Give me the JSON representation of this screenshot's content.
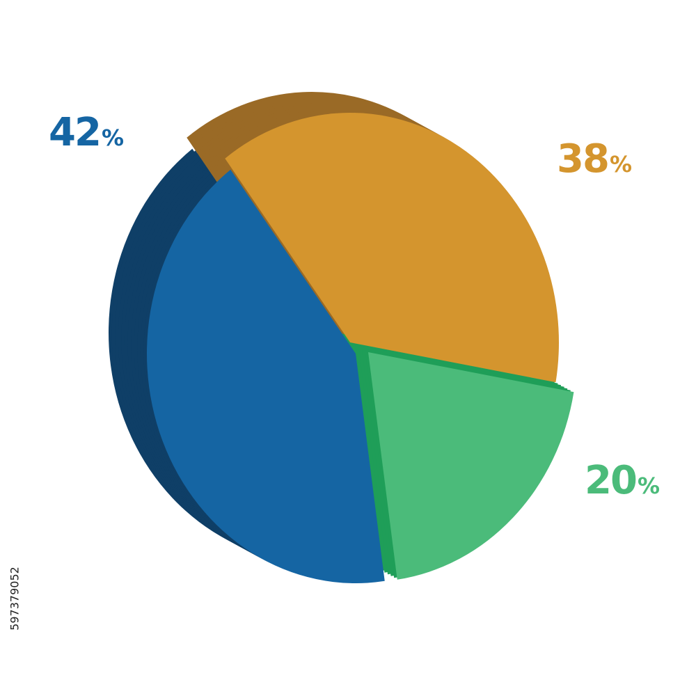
{
  "chart_data": {
    "type": "pie",
    "style": "3d-exploded",
    "slices": [
      {
        "value": 42,
        "label": "42",
        "unit": "%",
        "color": "#1565a3",
        "side_color": "#0f3f67"
      },
      {
        "value": 38,
        "label": "38",
        "unit": "%",
        "color": "#d4952e",
        "side_color": "#9a6a26"
      },
      {
        "value": 20,
        "label": "20",
        "unit": "%",
        "color": "#4bbb7a",
        "side_color": "#1f9e58"
      }
    ]
  },
  "stock_id": "597379052"
}
